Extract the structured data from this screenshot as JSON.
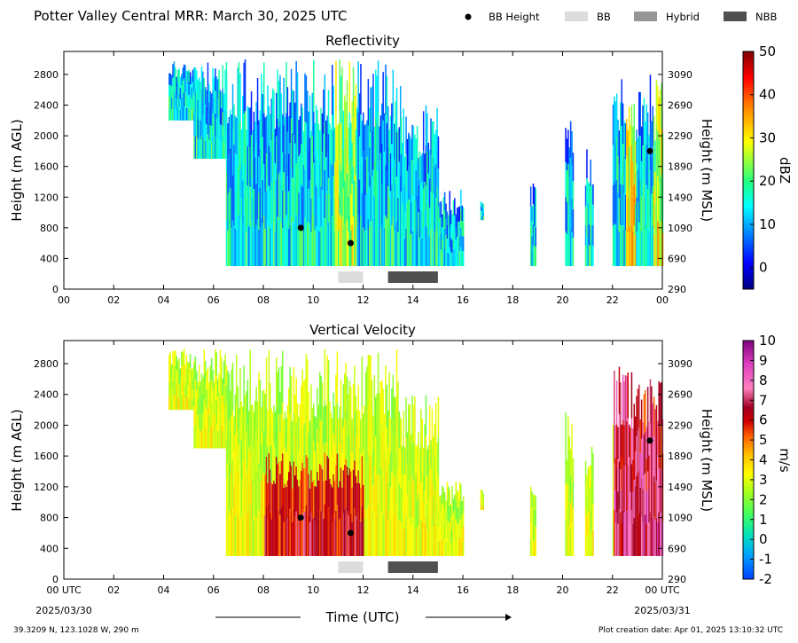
{
  "figure": {
    "title": "Potter Valley Central MRR:  March 30, 2025 UTC",
    "legend": [
      {
        "label": "BB Height",
        "kind": "dot",
        "color": "#000000"
      },
      {
        "label": "BB",
        "kind": "box",
        "color": "#dcdcdc"
      },
      {
        "label": "Hybrid",
        "kind": "box",
        "color": "#969696"
      },
      {
        "label": "NBB",
        "kind": "box",
        "color": "#505050"
      }
    ],
    "footer_left": "39.3209 N, 123.1028 W, 290 m",
    "footer_right": "Plot creation date: Apr 01, 2025 13:10:32 UTC",
    "xlabel": "Time (UTC)",
    "start_label_time": "00 UTC",
    "start_label_date": "2025/03/30",
    "end_label_time": "00 UTC",
    "end_label_date": "2025/03/31"
  },
  "chart_data": [
    {
      "type": "heatmap",
      "title": "Reflectivity",
      "ylabel": "Height (m AGL)",
      "ylabel_right": "Height (m MSL)",
      "xlim": [
        0,
        24
      ],
      "ylim": [
        0,
        3100
      ],
      "x_ticks": [
        "00",
        "02",
        "04",
        "06",
        "08",
        "10",
        "12",
        "14",
        "16",
        "18",
        "20",
        "22",
        "00"
      ],
      "y_ticks": [
        0,
        400,
        800,
        1200,
        1600,
        2000,
        2400,
        2800
      ],
      "y_ticks_right": [
        290,
        690,
        1090,
        1490,
        1890,
        2290,
        2690,
        3090
      ],
      "colorbar": {
        "label": "dBZ",
        "min": -5,
        "max": 50,
        "ticks": [
          0,
          10,
          20,
          30,
          40,
          50
        ],
        "colormap": "jet"
      },
      "bright_band_heights": [
        {
          "x": 9.5,
          "y": 800
        },
        {
          "x": 11.5,
          "y": 600
        },
        {
          "x": 23.5,
          "y": 1800
        }
      ],
      "bands": [
        {
          "type": "BB",
          "start": 11.0,
          "end": 12.0
        },
        {
          "type": "NBB",
          "start": 13.0,
          "end": 15.0
        }
      ],
      "echo_extent": [
        {
          "start": 4.2,
          "end": 5.2,
          "top": 3000,
          "base": 2200
        },
        {
          "start": 5.2,
          "end": 6.5,
          "top": 3000,
          "base": 1700
        },
        {
          "start": 6.5,
          "end": 8.0,
          "top": 3000,
          "base": 300
        },
        {
          "start": 8.0,
          "end": 13.5,
          "top": 3000,
          "base": 300
        },
        {
          "start": 13.5,
          "end": 15.0,
          "top": 2400,
          "base": 300
        },
        {
          "start": 15.0,
          "end": 16.0,
          "top": 1300,
          "base": 300
        },
        {
          "start": 16.7,
          "end": 16.8,
          "top": 1200,
          "base": 900
        },
        {
          "start": 18.7,
          "end": 18.9,
          "top": 1400,
          "base": 300
        },
        {
          "start": 20.1,
          "end": 20.4,
          "top": 2200,
          "base": 300
        },
        {
          "start": 20.9,
          "end": 21.2,
          "top": 1900,
          "base": 300
        },
        {
          "start": 22.0,
          "end": 24.0,
          "top": 2800,
          "base": 300
        }
      ]
    },
    {
      "type": "heatmap",
      "title": "Vertical Velocity",
      "ylabel": "Height (m AGL)",
      "ylabel_right": "Height (m MSL)",
      "xlim": [
        0,
        24
      ],
      "ylim": [
        0,
        3100
      ],
      "x_ticks": [
        "00 UTC",
        "02",
        "04",
        "06",
        "08",
        "10",
        "12",
        "14",
        "16",
        "18",
        "20",
        "22",
        "00 UTC"
      ],
      "y_ticks": [
        0,
        400,
        800,
        1200,
        1600,
        2000,
        2400,
        2800
      ],
      "y_ticks_right": [
        290,
        690,
        1090,
        1490,
        1890,
        2290,
        2690,
        3090
      ],
      "colorbar": {
        "label": "m/s",
        "min": -2,
        "max": 10,
        "ticks": [
          -2,
          -1,
          0,
          1,
          2,
          3,
          4,
          5,
          6,
          7,
          8,
          9,
          10
        ],
        "colormap": "velocity"
      },
      "bright_band_heights": [
        {
          "x": 9.5,
          "y": 800
        },
        {
          "x": 11.5,
          "y": 600
        },
        {
          "x": 23.5,
          "y": 1800
        }
      ],
      "bands": [
        {
          "type": "BB",
          "start": 11.0,
          "end": 12.0
        },
        {
          "type": "NBB",
          "start": 13.0,
          "end": 15.0
        }
      ],
      "echo_extent": [
        {
          "start": 4.2,
          "end": 5.2,
          "top": 3000,
          "base": 2200
        },
        {
          "start": 5.2,
          "end": 6.5,
          "top": 3000,
          "base": 1700
        },
        {
          "start": 6.5,
          "end": 8.0,
          "top": 3000,
          "base": 300
        },
        {
          "start": 8.0,
          "end": 13.5,
          "top": 3000,
          "base": 300
        },
        {
          "start": 13.5,
          "end": 15.0,
          "top": 2400,
          "base": 300
        },
        {
          "start": 15.0,
          "end": 16.0,
          "top": 1300,
          "base": 300
        },
        {
          "start": 16.7,
          "end": 16.8,
          "top": 1200,
          "base": 900
        },
        {
          "start": 18.7,
          "end": 18.9,
          "top": 1400,
          "base": 300
        },
        {
          "start": 20.1,
          "end": 20.4,
          "top": 2200,
          "base": 300
        },
        {
          "start": 20.9,
          "end": 21.2,
          "top": 1900,
          "base": 300
        },
        {
          "start": 22.0,
          "end": 24.0,
          "top": 2800,
          "base": 300
        }
      ]
    }
  ]
}
